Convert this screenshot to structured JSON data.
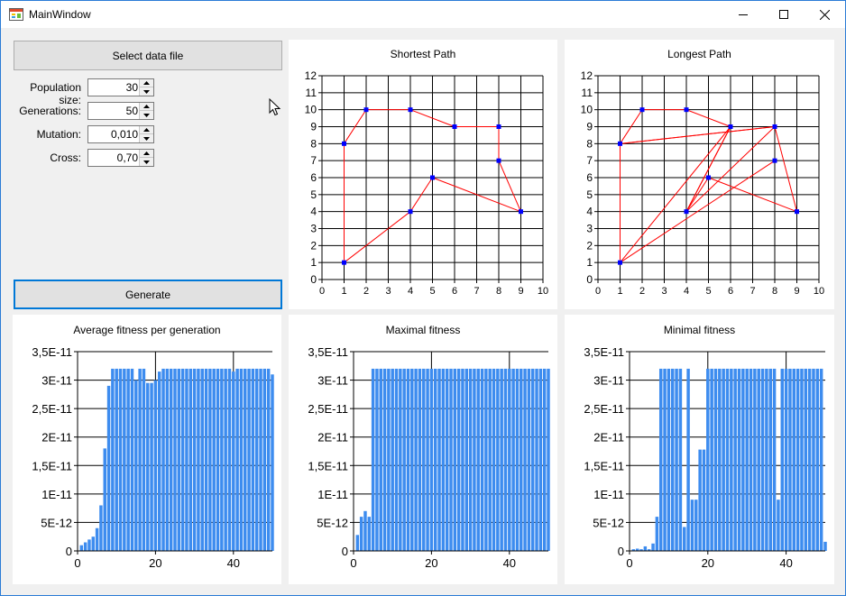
{
  "window": {
    "title": "MainWindow",
    "app_icon": "form-icon",
    "minimize_icon": "minimize-icon",
    "maximize_icon": "maximize-icon",
    "close_icon": "close-icon"
  },
  "controls": {
    "select_button": "Select data file",
    "generate_button": "Generate",
    "fields": [
      {
        "label": "Population size:",
        "value": "30"
      },
      {
        "label": "Generations:",
        "value": "50"
      },
      {
        "label": "Mutation:",
        "value": "0,010"
      },
      {
        "label": "Cross:",
        "value": "0,70"
      }
    ]
  },
  "chart_data": [
    {
      "type": "line",
      "title": "Shortest Path",
      "xlim": [
        0,
        10
      ],
      "ylim": [
        0,
        12
      ],
      "xticks": [
        "0",
        "1",
        "2",
        "3",
        "4",
        "5",
        "6",
        "7",
        "8",
        "9",
        "10"
      ],
      "yticks": [
        "0",
        "1",
        "2",
        "3",
        "4",
        "5",
        "6",
        "7",
        "8",
        "9",
        "10",
        "11",
        "12"
      ],
      "grid": true,
      "line_color": "#ff0000",
      "marker_color": "#0000ff",
      "x": [
        1,
        1,
        2,
        4,
        6,
        8,
        8,
        9,
        5,
        4,
        1
      ],
      "y": [
        1,
        8,
        10,
        10,
        9,
        9,
        7,
        4,
        6,
        4,
        1
      ]
    },
    {
      "type": "line",
      "title": "Longest Path",
      "xlim": [
        0,
        10
      ],
      "ylim": [
        0,
        12
      ],
      "xticks": [
        "0",
        "1",
        "2",
        "3",
        "4",
        "5",
        "6",
        "7",
        "8",
        "9",
        "10"
      ],
      "yticks": [
        "0",
        "1",
        "2",
        "3",
        "4",
        "5",
        "6",
        "7",
        "8",
        "9",
        "10",
        "11",
        "12"
      ],
      "grid": true,
      "line_color": "#ff0000",
      "marker_color": "#0000ff",
      "x": [
        1,
        1,
        2,
        4,
        6,
        4,
        8,
        1,
        8,
        9,
        5,
        4,
        6,
        1,
        8
      ],
      "y": [
        1,
        8,
        10,
        10,
        9,
        4,
        9,
        8,
        9,
        4,
        6,
        4,
        9,
        1,
        7
      ]
    },
    {
      "type": "bar",
      "title": "Average fitness per generation",
      "xlim": [
        0,
        50
      ],
      "ylim": [
        0,
        3.5e-11
      ],
      "xticks": [
        "0",
        "20",
        "40"
      ],
      "yticks": [
        "0",
        "5E-12",
        "1E-11",
        "1,5E-11",
        "2E-11",
        "2,5E-11",
        "3E-11",
        "3,5E-11"
      ],
      "color": "#3d8cef",
      "x": [
        1,
        2,
        3,
        4,
        5,
        6,
        7,
        8,
        9,
        10,
        11,
        12,
        13,
        14,
        15,
        16,
        17,
        18,
        19,
        20,
        21,
        22,
        23,
        24,
        25,
        26,
        27,
        28,
        29,
        30,
        31,
        32,
        33,
        34,
        35,
        36,
        37,
        38,
        39,
        40,
        41,
        42,
        43,
        44,
        45,
        46,
        47,
        48,
        49,
        50
      ],
      "values": [
        1e-12,
        1.5e-12,
        2e-12,
        2.5e-12,
        4e-12,
        8e-12,
        1.8e-11,
        2.9e-11,
        3.2e-11,
        3.2e-11,
        3.2e-11,
        3.2e-11,
        3.2e-11,
        3.2e-11,
        3e-11,
        3.2e-11,
        3.2e-11,
        2.95e-11,
        2.95e-11,
        3e-11,
        3.15e-11,
        3.2e-11,
        3.2e-11,
        3.2e-11,
        3.2e-11,
        3.2e-11,
        3.2e-11,
        3.2e-11,
        3.2e-11,
        3.2e-11,
        3.2e-11,
        3.2e-11,
        3.2e-11,
        3.2e-11,
        3.2e-11,
        3.2e-11,
        3.2e-11,
        3.2e-11,
        3.2e-11,
        3.15e-11,
        3.2e-11,
        3.2e-11,
        3.2e-11,
        3.2e-11,
        3.2e-11,
        3.2e-11,
        3.2e-11,
        3.2e-11,
        3.2e-11,
        3.1e-11
      ]
    },
    {
      "type": "bar",
      "title": "Maximal fitness",
      "xlim": [
        0,
        50
      ],
      "ylim": [
        0,
        3.5e-11
      ],
      "xticks": [
        "0",
        "20",
        "40"
      ],
      "yticks": [
        "0",
        "5E-12",
        "1E-11",
        "1,5E-11",
        "2E-11",
        "2,5E-11",
        "3E-11",
        "3,5E-11"
      ],
      "color": "#3d8cef",
      "x": [
        1,
        2,
        3,
        4,
        5,
        6,
        7,
        8,
        9,
        10,
        11,
        12,
        13,
        14,
        15,
        16,
        17,
        18,
        19,
        20,
        21,
        22,
        23,
        24,
        25,
        26,
        27,
        28,
        29,
        30,
        31,
        32,
        33,
        34,
        35,
        36,
        37,
        38,
        39,
        40,
        41,
        42,
        43,
        44,
        45,
        46,
        47,
        48,
        49,
        50
      ],
      "values": [
        2.8e-12,
        6e-12,
        7e-12,
        6e-12,
        3.2e-11,
        3.2e-11,
        3.2e-11,
        3.2e-11,
        3.2e-11,
        3.2e-11,
        3.2e-11,
        3.2e-11,
        3.2e-11,
        3.2e-11,
        3.2e-11,
        3.2e-11,
        3.2e-11,
        3.2e-11,
        3.2e-11,
        3.2e-11,
        3.2e-11,
        3.2e-11,
        3.2e-11,
        3.2e-11,
        3.2e-11,
        3.2e-11,
        3.2e-11,
        3.2e-11,
        3.2e-11,
        3.2e-11,
        3.2e-11,
        3.2e-11,
        3.2e-11,
        3.2e-11,
        3.2e-11,
        3.2e-11,
        3.2e-11,
        3.2e-11,
        3.2e-11,
        3.2e-11,
        3.2e-11,
        3.2e-11,
        3.2e-11,
        3.2e-11,
        3.2e-11,
        3.2e-11,
        3.2e-11,
        3.2e-11,
        3.2e-11,
        3.2e-11
      ]
    },
    {
      "type": "bar",
      "title": "Minimal fitness",
      "xlim": [
        0,
        50
      ],
      "ylim": [
        0,
        3.5e-11
      ],
      "xticks": [
        "0",
        "20",
        "40"
      ],
      "yticks": [
        "0",
        "5E-12",
        "1E-11",
        "1,5E-11",
        "2E-11",
        "2,5E-11",
        "3E-11",
        "3,5E-11"
      ],
      "color": "#3d8cef",
      "x": [
        1,
        2,
        3,
        4,
        5,
        6,
        7,
        8,
        9,
        10,
        11,
        12,
        13,
        14,
        15,
        16,
        17,
        18,
        19,
        20,
        21,
        22,
        23,
        24,
        25,
        26,
        27,
        28,
        29,
        30,
        31,
        32,
        33,
        34,
        35,
        36,
        37,
        38,
        39,
        40,
        41,
        42,
        43,
        44,
        45,
        46,
        47,
        48,
        49,
        50
      ],
      "values": [
        3e-13,
        4e-13,
        3e-13,
        8e-13,
        3e-13,
        1.3e-12,
        6e-12,
        3.2e-11,
        3.2e-11,
        3.2e-11,
        3.2e-11,
        3.2e-11,
        3.2e-11,
        4.2e-12,
        3.2e-11,
        9e-12,
        9e-12,
        1.78e-11,
        1.78e-11,
        3.2e-11,
        3.2e-11,
        3.2e-11,
        3.2e-11,
        3.2e-11,
        3.2e-11,
        3.2e-11,
        3.2e-11,
        3.2e-11,
        3.2e-11,
        3.2e-11,
        3.2e-11,
        3.2e-11,
        3.2e-11,
        3.2e-11,
        3.2e-11,
        3.2e-11,
        3.2e-11,
        9e-12,
        3.2e-11,
        3.2e-11,
        3.2e-11,
        3.2e-11,
        3.2e-11,
        3.2e-11,
        3.2e-11,
        3.2e-11,
        3.2e-11,
        3.2e-11,
        3.2e-11,
        1.6e-12
      ]
    }
  ]
}
